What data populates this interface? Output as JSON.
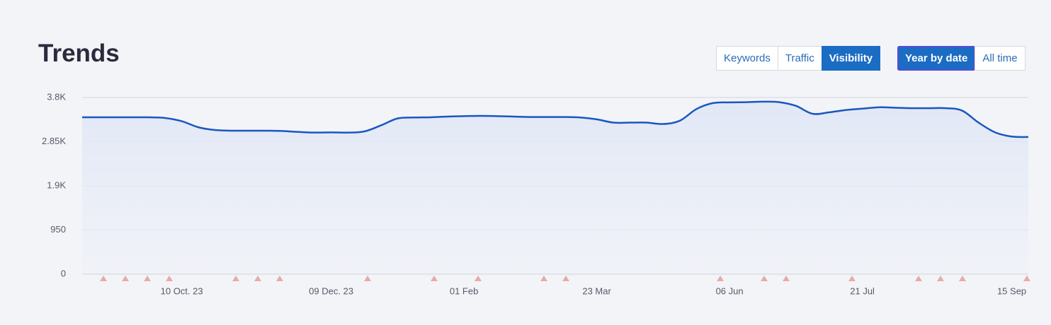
{
  "chart_data": {
    "type": "line",
    "title": "Trends",
    "categories": [
      null,
      null,
      null,
      null,
      null,
      null,
      "10 Oct. 23",
      null,
      null,
      null,
      null,
      null,
      null,
      null,
      null,
      "09 Dec. 23",
      null,
      null,
      null,
      null,
      null,
      null,
      null,
      "01 Feb",
      null,
      null,
      null,
      null,
      null,
      null,
      null,
      "23 Mar",
      null,
      null,
      null,
      null,
      null,
      null,
      null,
      "06 Jun",
      null,
      null,
      null,
      null,
      null,
      null,
      null,
      "21 Jul",
      null,
      null,
      null,
      null,
      null,
      null,
      null,
      null,
      "15 Sep",
      null
    ],
    "series": [
      {
        "color": "#1a57c0",
        "values": [
          3374,
          3374,
          3374,
          3374,
          3374,
          3360,
          3290,
          3160,
          3100,
          3086,
          3086,
          3086,
          3080,
          3060,
          3045,
          3050,
          3045,
          3070,
          3200,
          3350,
          3370,
          3375,
          3390,
          3400,
          3405,
          3400,
          3390,
          3380,
          3380,
          3380,
          3370,
          3330,
          3260,
          3260,
          3260,
          3230,
          3300,
          3550,
          3680,
          3695,
          3700,
          3710,
          3700,
          3620,
          3450,
          3480,
          3530,
          3560,
          3590,
          3580,
          3570,
          3570,
          3570,
          3520,
          3260,
          3050,
          2960,
          2950
        ]
      }
    ],
    "ylim": [
      0,
      3800
    ],
    "yticks": [
      0,
      950,
      {
        "value": 1900,
        "label": "1.9K"
      },
      {
        "value": 2850,
        "label": "2.85K"
      },
      {
        "value": 3800,
        "label": "3.8K"
      }
    ],
    "grid": true
  },
  "controls": {
    "metric_tabs": [
      "Keywords",
      "Traffic",
      "Visibility"
    ],
    "active_metric": 2,
    "period_tabs": [
      "Year by date",
      "All time"
    ],
    "active_period": 0
  }
}
